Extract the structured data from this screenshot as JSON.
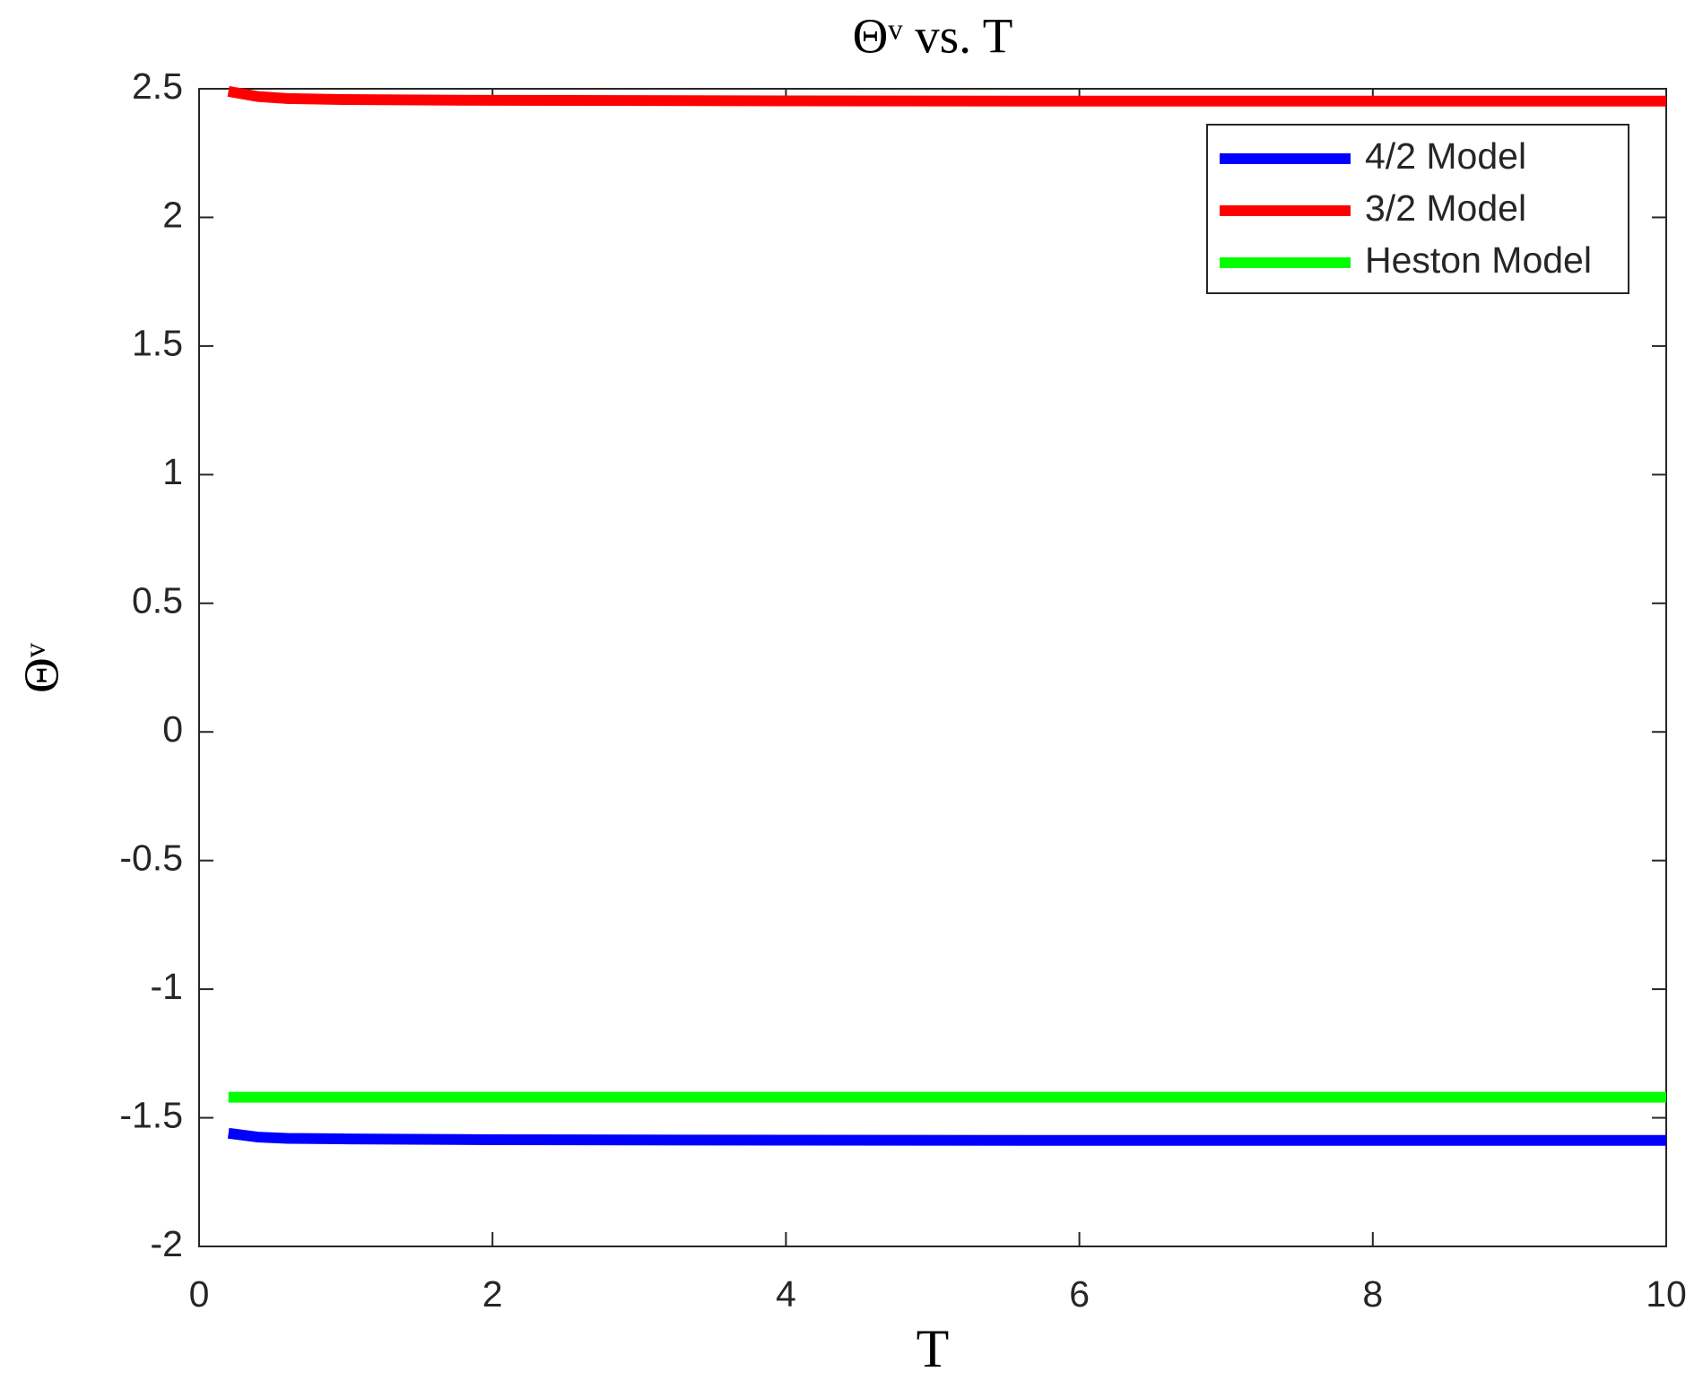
{
  "chart_data": {
    "type": "line",
    "title": "Θᵛ vs. T",
    "xlabel": "T",
    "ylabel": "Θᵛ",
    "x": [
      0.2,
      0.4,
      0.6,
      1,
      2,
      4,
      6,
      8,
      10
    ],
    "series": [
      {
        "name": "4/2 Model",
        "color": "#0000ff",
        "values": [
          -1.56,
          -1.575,
          -1.58,
          -1.582,
          -1.585,
          -1.587,
          -1.588,
          -1.588,
          -1.588
        ]
      },
      {
        "name": "3/2 Model",
        "color": "#ff0000",
        "values": [
          2.49,
          2.47,
          2.462,
          2.458,
          2.455,
          2.453,
          2.452,
          2.452,
          2.452
        ]
      },
      {
        "name": "Heston Model",
        "color": "#00ff00",
        "values": [
          -1.42,
          -1.42,
          -1.42,
          -1.42,
          -1.42,
          -1.42,
          -1.42,
          -1.42,
          -1.42
        ]
      }
    ],
    "xlim": [
      0,
      10
    ],
    "xticks": [
      0,
      2,
      4,
      6,
      8,
      10
    ],
    "ylim": [
      -2,
      2.5
    ],
    "yticks": [
      -2,
      -1.5,
      -1,
      -0.5,
      0,
      0.5,
      1,
      1.5,
      2,
      2.5
    ],
    "legend": "upper right"
  }
}
